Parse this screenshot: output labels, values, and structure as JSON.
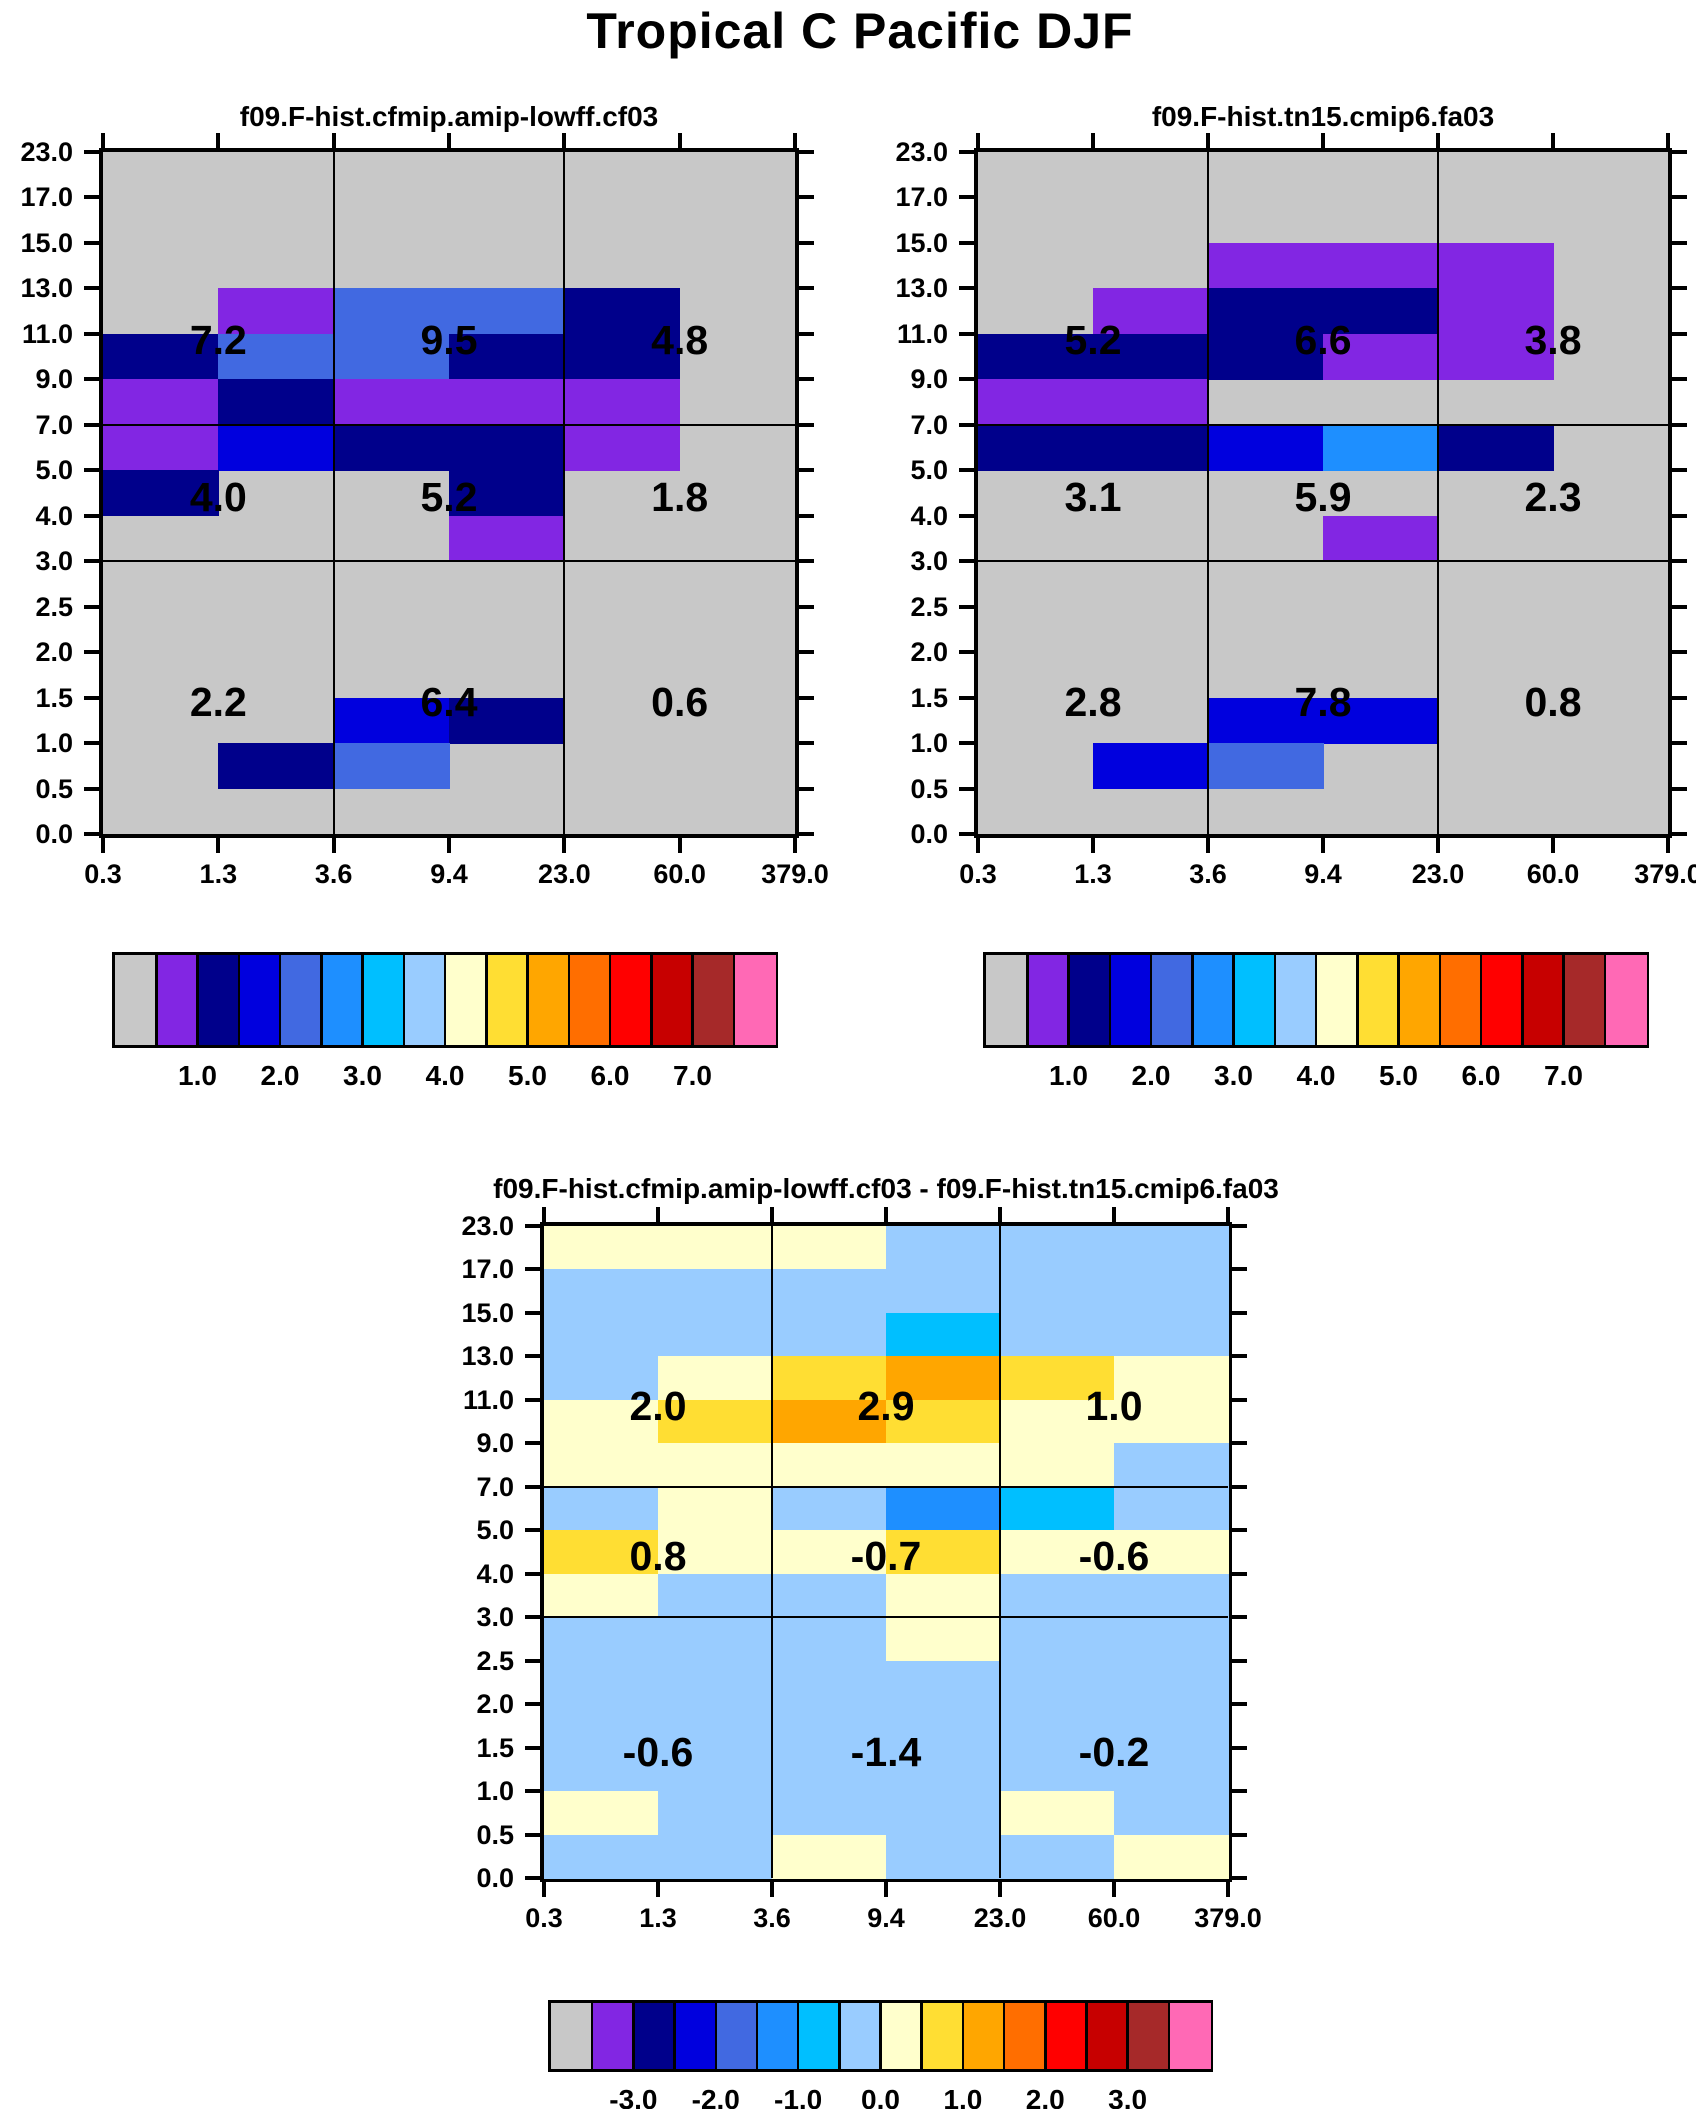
{
  "title": "Tropical C Pacific DJF",
  "axes": {
    "y_tick_labels": [
      "23.0",
      "17.0",
      "15.0",
      "13.0",
      "11.0",
      "9.0",
      "7.0",
      "5.0",
      "4.0",
      "3.0",
      "2.5",
      "2.0",
      "1.5",
      "1.0",
      "0.5",
      "0.0"
    ],
    "x_tick_labels": [
      "0.3",
      "1.3",
      "3.6",
      "9.4",
      "23.0",
      "60.0",
      "379.0"
    ]
  },
  "palette": {
    "G": "#C8C8C8",
    "P": "#8226E3",
    "N": "#00008B",
    "B": "#0000DE",
    "R": "#4169E1",
    "D": "#1E8FFF",
    "S": "#00BFFF",
    "L": "#99CCFF",
    "Y": "#FFFFCC",
    "g": "#FFDE33",
    "O": "#FFA600",
    "o": "#FF6E00",
    "r": "#FF0000",
    "d": "#C70000",
    "b": "#A62929",
    "k": "#FF69B5"
  },
  "colorbar_sequence": [
    "G",
    "P",
    "N",
    "B",
    "R",
    "D",
    "S",
    "L",
    "Y",
    "g",
    "O",
    "o",
    "r",
    "d",
    "b",
    "k"
  ],
  "panels": [
    {
      "title": "f09.F-hist.cfmip.amip-lowff.cf03",
      "grid": [
        "GGGGGG",
        "GGGGGG",
        "GGGGGG",
        "GPRRNG",
        "NRRNNG",
        "PNPPPG",
        "PBNNPG",
        "NGGNGG",
        "GGGPGG",
        "GGGGGG",
        "GGGGGG",
        "GGGGGG",
        "GGBNGG",
        "GNRGGG",
        "GGGGGG"
      ],
      "box_values": [
        [
          "7.2",
          "9.5",
          "4.8"
        ],
        [
          "4.0",
          "5.2",
          "1.8"
        ],
        [
          "2.2",
          "6.4",
          "0.6"
        ]
      ],
      "colorbar_labels": [
        "1.0",
        "2.0",
        "3.0",
        "4.0",
        "5.0",
        "6.0",
        "7.0"
      ]
    },
    {
      "title": "f09.F-hist.tn15.cmip6.fa03",
      "grid": [
        "GGGGGG",
        "GGGGGG",
        "GGPPPG",
        "GPNNPG",
        "NNNPPG",
        "PPGGGG",
        "NNBDNG",
        "GGGGGG",
        "GGGPGG",
        "GGGGGG",
        "GGGGGG",
        "GGGGGG",
        "GGBBGG",
        "GBRGGG",
        "GGGGGG"
      ],
      "box_values": [
        [
          "5.2",
          "6.6",
          "3.8"
        ],
        [
          "3.1",
          "5.9",
          "2.3"
        ],
        [
          "2.8",
          "7.8",
          "0.8"
        ]
      ],
      "colorbar_labels": [
        "1.0",
        "2.0",
        "3.0",
        "4.0",
        "5.0",
        "6.0",
        "7.0"
      ]
    },
    {
      "title": "f09.F-hist.cfmip.amip-lowff.cf03 - f09.F-hist.tn15.cmip6.fa03",
      "grid": [
        "YYYLLL",
        "LLLLLL",
        "LLLSLL",
        "LYgOgY",
        "YgOgYY",
        "YYYYYL",
        "LYLDSL",
        "gYYgYY",
        "YLLYLL",
        "LLLYLL",
        "LLLLLL",
        "LLLLLL",
        "LLLLLL",
        "YLLLYL",
        "LLYLLY"
      ],
      "box_values": [
        [
          "2.0",
          "2.9",
          "1.0"
        ],
        [
          "0.8",
          "-0.7",
          "-0.6"
        ],
        [
          "-0.6",
          "-1.4",
          "-0.2"
        ]
      ],
      "colorbar_labels": [
        "-3.0",
        "-2.0",
        "-1.0",
        "0.0",
        "1.0",
        "2.0",
        "3.0"
      ]
    }
  ],
  "chart_data": [
    {
      "type": "heatmap",
      "title": "f09.F-hist.cfmip.amip-lowff.cf03",
      "suptitle": "Tropical C Pacific DJF",
      "x_bin_edges": [
        0.3,
        1.3,
        3.6,
        9.4,
        23.0,
        60.0,
        379.0
      ],
      "y_bin_edges": [
        0.0,
        0.5,
        1.0,
        1.5,
        2.0,
        2.5,
        3.0,
        4.0,
        5.0,
        7.0,
        9.0,
        11.0,
        13.0,
        15.0,
        17.0,
        23.0
      ],
      "rows_order": "top-to-bottom (23.0 down to 0.0)",
      "cell_color_keys": [
        "GGGGGG",
        "GGGGGG",
        "GGGGGG",
        "GPRRNG",
        "NRRNNG",
        "PNPPPG",
        "PBNNPG",
        "NGGNGG",
        "GGGPGG",
        "GGGGGG",
        "GGGGGG",
        "GGGGGG",
        "GGBNGG",
        "GNRGGG",
        "GGGGGG"
      ],
      "color_bin_values": {
        "G": "<0.5 or missing",
        "P": "0.5-1.0",
        "N": "1.0-1.5",
        "B": "1.5-2.0",
        "R": "2.0-2.5",
        "D": "2.5-3.0",
        "S": "3.0-3.5",
        "L": "3.5-4.0"
      },
      "region_totals": {
        "layout": "3x3 regions split at x=3.6,23.0 and y=7.0,3.0",
        "values": [
          [
            7.2,
            9.5,
            4.8
          ],
          [
            4.0,
            5.2,
            1.8
          ],
          [
            2.2,
            6.4,
            0.6
          ]
        ]
      },
      "colorbar_ticks": [
        1.0,
        2.0,
        3.0,
        4.0,
        5.0,
        6.0,
        7.0
      ],
      "grid_lines": {
        "x": [
          3.6,
          23.0
        ],
        "y": [
          3.0,
          7.0
        ]
      },
      "legend_position": "bottom"
    },
    {
      "type": "heatmap",
      "title": "f09.F-hist.tn15.cmip6.fa03",
      "x_bin_edges": [
        0.3,
        1.3,
        3.6,
        9.4,
        23.0,
        60.0,
        379.0
      ],
      "y_bin_edges": [
        0.0,
        0.5,
        1.0,
        1.5,
        2.0,
        2.5,
        3.0,
        4.0,
        5.0,
        7.0,
        9.0,
        11.0,
        13.0,
        15.0,
        17.0,
        23.0
      ],
      "rows_order": "top-to-bottom (23.0 down to 0.0)",
      "cell_color_keys": [
        "GGGGGG",
        "GGGGGG",
        "GGPPPG",
        "GPNNPG",
        "NNNPPG",
        "PPGGGG",
        "NNBDNG",
        "GGGGGG",
        "GGGPGG",
        "GGGGGG",
        "GGGGGG",
        "GGGGGG",
        "GGBBGG",
        "GBRGGG",
        "GGGGGG"
      ],
      "region_totals": {
        "layout": "3x3 regions split at x=3.6,23.0 and y=7.0,3.0",
        "values": [
          [
            5.2,
            6.6,
            3.8
          ],
          [
            3.1,
            5.9,
            2.3
          ],
          [
            2.8,
            7.8,
            0.8
          ]
        ]
      },
      "colorbar_ticks": [
        1.0,
        2.0,
        3.0,
        4.0,
        5.0,
        6.0,
        7.0
      ],
      "grid_lines": {
        "x": [
          3.6,
          23.0
        ],
        "y": [
          3.0,
          7.0
        ]
      },
      "legend_position": "bottom"
    },
    {
      "type": "heatmap",
      "title": "f09.F-hist.cfmip.amip-lowff.cf03 - f09.F-hist.tn15.cmip6.fa03",
      "x_bin_edges": [
        0.3,
        1.3,
        3.6,
        9.4,
        23.0,
        60.0,
        379.0
      ],
      "y_bin_edges": [
        0.0,
        0.5,
        1.0,
        1.5,
        2.0,
        2.5,
        3.0,
        4.0,
        5.0,
        7.0,
        9.0,
        11.0,
        13.0,
        15.0,
        17.0,
        23.0
      ],
      "rows_order": "top-to-bottom (23.0 down to 0.0)",
      "cell_color_keys": [
        "YYYLLL",
        "LLLLLL",
        "LLLSLL",
        "LYgOgY",
        "YgOgYY",
        "YYYYYL",
        "LYLDSL",
        "gYYgYY",
        "YLLYLL",
        "LLLYLL",
        "LLLLLL",
        "LLLLLL",
        "LLLLLL",
        "YLLLYL",
        "LLYLLY"
      ],
      "color_bin_values": {
        "L": "-0.5-0.0",
        "Y": "0.0-0.5",
        "g": "0.5-1.0",
        "O": "1.0-1.5",
        "S": "-1.0--0.5",
        "D": "-1.5--1.0"
      },
      "region_totals": {
        "layout": "3x3 regions split at x=3.6,23.0 and y=7.0,3.0",
        "values": [
          [
            2.0,
            2.9,
            1.0
          ],
          [
            0.8,
            -0.7,
            -0.6
          ],
          [
            -0.6,
            -1.4,
            -0.2
          ]
        ]
      },
      "colorbar_ticks": [
        -3.0,
        -2.0,
        -1.0,
        0.0,
        1.0,
        2.0,
        3.0
      ],
      "grid_lines": {
        "x": [
          3.6,
          23.0
        ],
        "y": [
          3.0,
          7.0
        ]
      },
      "legend_position": "bottom"
    }
  ]
}
